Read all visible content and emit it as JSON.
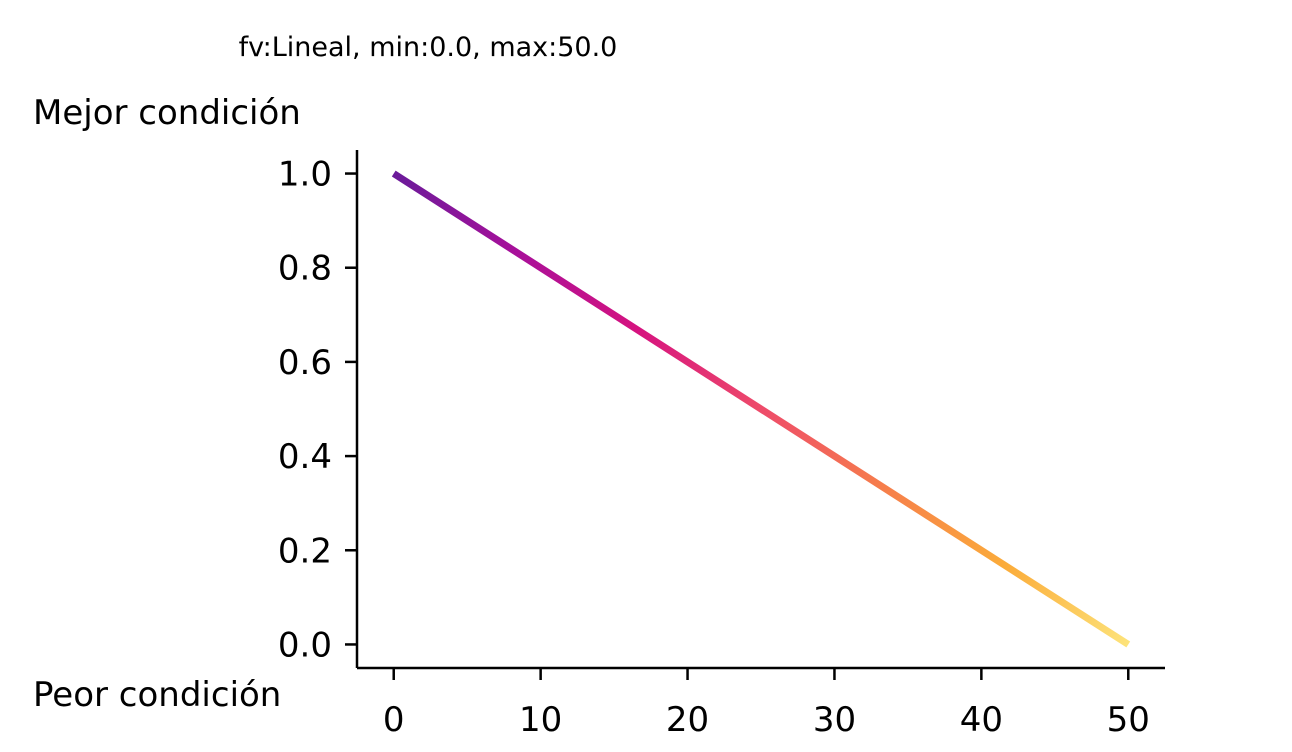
{
  "chart_data": {
    "type": "line",
    "title": "fv:Lineal, min:0.0, max:50.0",
    "top_label": "Mejor condición",
    "bottom_label": "Peor condición",
    "xlim": [
      -2.5,
      52.5
    ],
    "ylim": [
      -0.05,
      1.05
    ],
    "xticks": [
      0,
      10,
      20,
      30,
      40,
      50
    ],
    "xtick_labels": [
      "0",
      "10",
      "20",
      "30",
      "40",
      "50"
    ],
    "yticks": [
      0.0,
      0.2,
      0.4,
      0.6,
      0.8,
      1.0
    ],
    "ytick_labels": [
      "0.0",
      "0.2",
      "0.4",
      "0.6",
      "0.8",
      "1.0"
    ],
    "grid": false,
    "series": [
      {
        "x": [
          0,
          50
        ],
        "y": [
          1.0,
          0.0
        ],
        "colormap": "plasma",
        "color_stops": [
          "#6a1b9a",
          "#a8109a",
          "#d6137f",
          "#ee4b6a",
          "#f67e4b",
          "#fbac3a",
          "#fde37a"
        ]
      }
    ]
  }
}
